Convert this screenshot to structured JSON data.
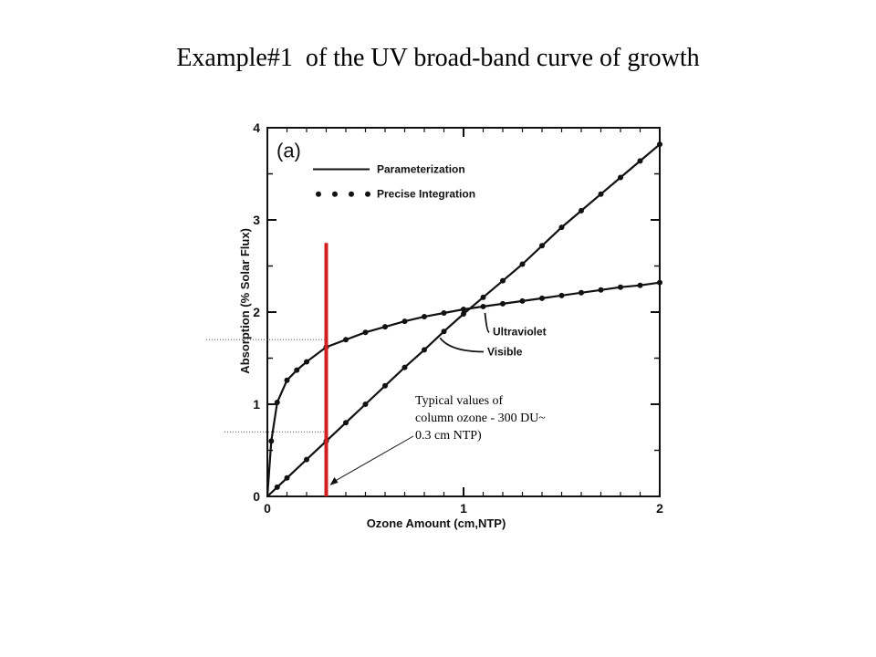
{
  "slide": {
    "title": "Example#1  of the UV broad-band curve of growth"
  },
  "chart_data": {
    "type": "line",
    "panel_label": "(a)",
    "xlabel": "Ozone Amount (cm,NTP)",
    "ylabel": "Absorption (% Solar Flux)",
    "xlim": [
      0,
      2
    ],
    "ylim": [
      0,
      4
    ],
    "x_ticks": [
      "0",
      "1",
      "2"
    ],
    "y_ticks": [
      "0",
      "1",
      "2",
      "3",
      "4"
    ],
    "grid": false,
    "legend": {
      "placement": "top-right",
      "entries": [
        {
          "label": "Parameterization",
          "style": "solid-line"
        },
        {
          "label": "Precise Integration",
          "style": "dots"
        }
      ]
    },
    "series": [
      {
        "name": "Ultraviolet",
        "x": [
          0.0,
          0.02,
          0.05,
          0.1,
          0.15,
          0.2,
          0.3,
          0.4,
          0.5,
          0.6,
          0.7,
          0.8,
          0.9,
          1.0,
          1.1,
          1.2,
          1.3,
          1.4,
          1.5,
          1.6,
          1.7,
          1.8,
          1.9,
          2.0
        ],
        "y": [
          0.0,
          0.6,
          1.02,
          1.26,
          1.37,
          1.46,
          1.62,
          1.7,
          1.78,
          1.84,
          1.9,
          1.95,
          1.99,
          2.03,
          2.06,
          2.09,
          2.12,
          2.15,
          2.18,
          2.21,
          2.24,
          2.27,
          2.29,
          2.32
        ]
      },
      {
        "name": "Visible",
        "x": [
          0.0,
          0.05,
          0.1,
          0.2,
          0.3,
          0.4,
          0.5,
          0.6,
          0.7,
          0.8,
          0.9,
          1.0,
          1.1,
          1.2,
          1.3,
          1.4,
          1.5,
          1.6,
          1.7,
          1.8,
          1.9,
          2.0
        ],
        "y": [
          0.0,
          0.1,
          0.2,
          0.4,
          0.6,
          0.8,
          1.0,
          1.2,
          1.4,
          1.59,
          1.79,
          1.98,
          2.16,
          2.34,
          2.52,
          2.72,
          2.92,
          3.1,
          3.28,
          3.46,
          3.64,
          3.82
        ]
      }
    ],
    "annotations": [
      "Ultraviolet",
      "Visible"
    ],
    "marker": {
      "x": 0.3,
      "ylim": [
        0,
        2.75
      ],
      "color": "#d21f1f",
      "reference_levels": [
        1.7,
        0.7
      ]
    },
    "note": {
      "lines": [
        "Typical values of",
        "column ozone - 300 DU~",
        "0.3 cm NTP)"
      ]
    }
  }
}
